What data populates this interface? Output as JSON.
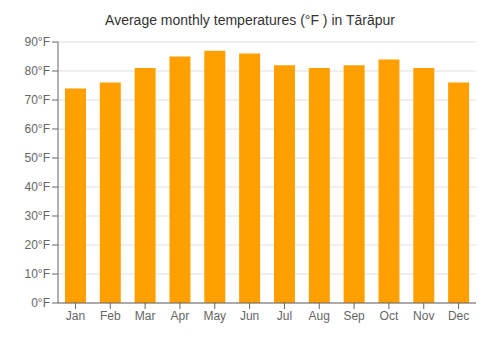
{
  "chart_data": {
    "type": "bar",
    "title": "Average monthly temperatures (°F ) in Tārāpur",
    "categories": [
      "Jan",
      "Feb",
      "Mar",
      "Apr",
      "May",
      "Jun",
      "Jul",
      "Aug",
      "Sep",
      "Oct",
      "Nov",
      "Dec"
    ],
    "values": [
      74,
      76,
      81,
      85,
      87,
      86,
      82,
      81,
      82,
      84,
      81,
      76
    ],
    "color": "#FFA000",
    "ylim": [
      0,
      90
    ],
    "yticks": [
      {
        "value": 0,
        "label": "0°F"
      },
      {
        "value": 10,
        "label": "10°F"
      },
      {
        "value": 20,
        "label": "20°F"
      },
      {
        "value": 30,
        "label": "30°F"
      },
      {
        "value": 40,
        "label": "40°F"
      },
      {
        "value": 50,
        "label": "50°F"
      },
      {
        "value": 60,
        "label": "60°F"
      },
      {
        "value": 70,
        "label": "70°F"
      },
      {
        "value": 80,
        "label": "80°F"
      },
      {
        "value": 90,
        "label": "90°F"
      }
    ],
    "grid": true
  }
}
